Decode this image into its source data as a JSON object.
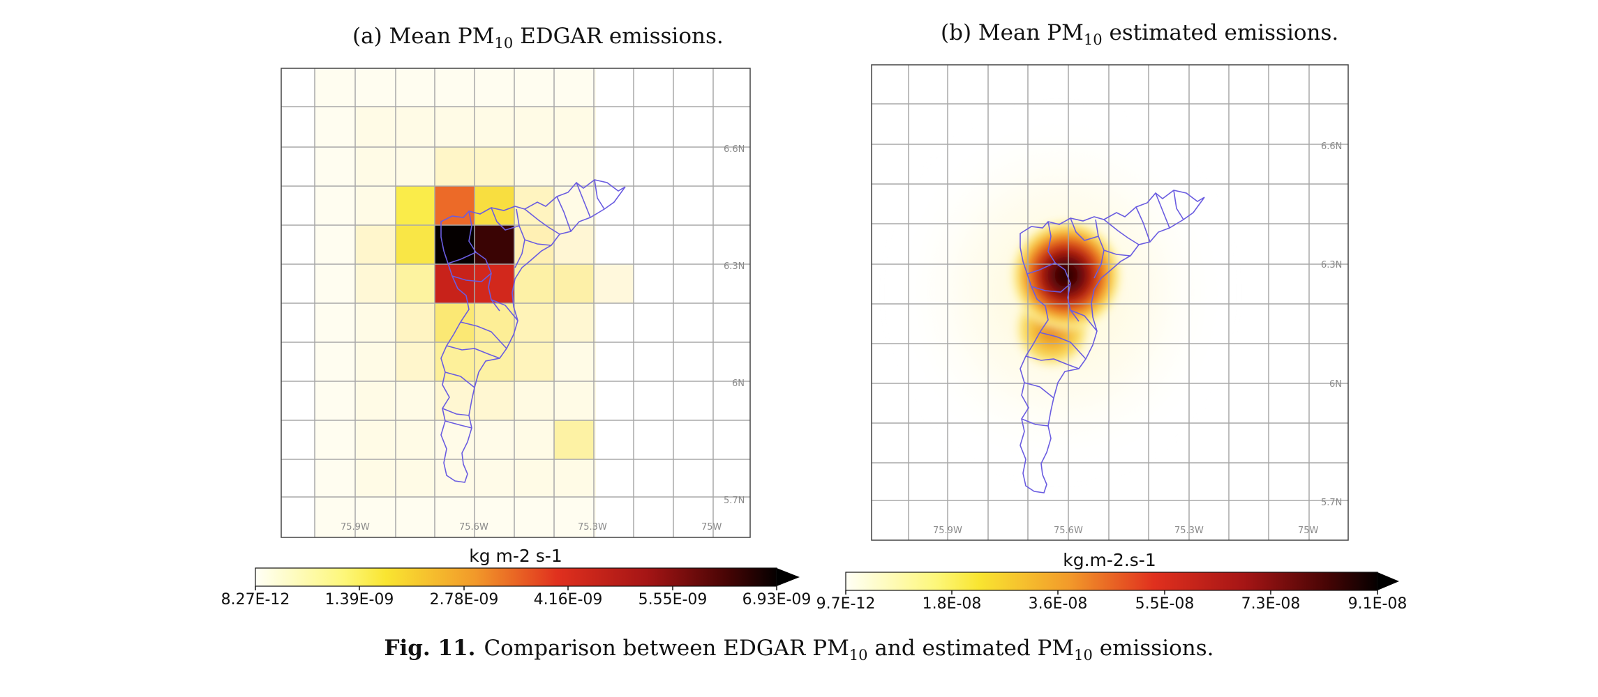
{
  "panels": [
    {
      "title": {
        "prefix": "(a) Mean PM",
        "sub": "10",
        "suffix": " EDGAR emissions."
      },
      "lon_labels": [
        "75.9W",
        "75.6W",
        "75.3W",
        "75W"
      ],
      "lat_labels": [
        "6.6N",
        "6.3N",
        "6N",
        "5.7N"
      ],
      "colorbar": {
        "unit": "kg m-2 s-1",
        "tick_labels": [
          "8.27E-12",
          "1.39E-09",
          "2.78E-09",
          "4.16E-09",
          "5.55E-09",
          "6.93E-09"
        ],
        "min": 8.27e-12,
        "max": 6.93e-09,
        "colormap": "hot_r"
      }
    },
    {
      "title": {
        "prefix": "(b) Mean PM",
        "sub": "10",
        "suffix": " estimated emissions."
      },
      "lon_labels": [
        "75.9W",
        "75.6W",
        "75.3W",
        "75W"
      ],
      "lat_labels": [
        "6.6N",
        "6.3N",
        "6N",
        "5.7N"
      ],
      "colorbar": {
        "unit": "kg.m-2.s-1",
        "tick_labels": [
          "9.7E-12",
          "1.8E-08",
          "3.6E-08",
          "5.5E-08",
          "7.3E-08",
          "9.1E-08"
        ],
        "min": 9.7e-12,
        "max": 9.1e-08,
        "colormap": "hot_r"
      }
    }
  ],
  "caption": {
    "label": "Fig. 11.",
    "text_1": "Comparison between EDGAR PM",
    "sub_1": "10",
    "text_2": " and estimated PM",
    "sub_2": "10",
    "text_3": " emissions."
  },
  "colors": {
    "boundary": "#6a5ce0",
    "grid": "#a8a8a8"
  }
}
